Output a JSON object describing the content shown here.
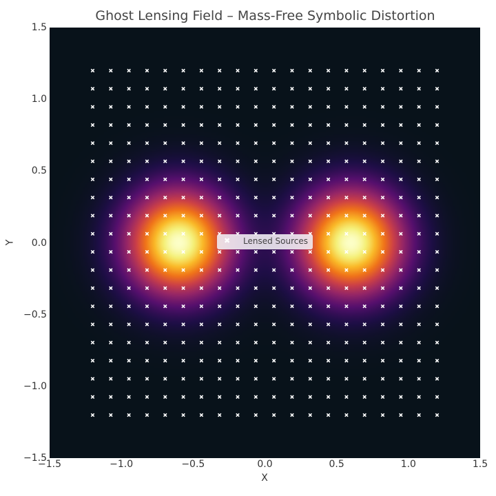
{
  "chart_data": {
    "type": "heatmap",
    "title": "Ghost Lensing Field – Mass-Free Symbolic Distortion",
    "xlabel": "X",
    "ylabel": "Y",
    "xlim": [
      -1.5,
      1.5
    ],
    "ylim": [
      -1.5,
      1.5
    ],
    "xticks": [
      "−1.5",
      "−1.0",
      "−0.5",
      "0.0",
      "0.5",
      "1.0",
      "1.5"
    ],
    "yticks": [
      "−1.5",
      "−1.0",
      "−0.5",
      "0.0",
      "0.5",
      "1.0",
      "1.5"
    ],
    "xtick_values": [
      -1.5,
      -1.0,
      -0.5,
      0.0,
      0.5,
      1.0,
      1.5
    ],
    "ytick_values": [
      -1.5,
      -1.0,
      -0.5,
      0.0,
      0.5,
      1.0,
      1.5
    ],
    "colormap": "inferno",
    "field": {
      "sources": [
        {
          "x": -0.6,
          "y": 0.0
        },
        {
          "x": 0.6,
          "y": 0.0
        }
      ],
      "sigma": 0.25
    },
    "scatter": {
      "name": "Lensed Sources",
      "marker": "x",
      "color": "#ffffff",
      "grid_range": [
        -1.2,
        1.2
      ],
      "grid_count": 20
    },
    "legend": {
      "entries": [
        "Lensed Sources"
      ],
      "placement": "center"
    }
  }
}
